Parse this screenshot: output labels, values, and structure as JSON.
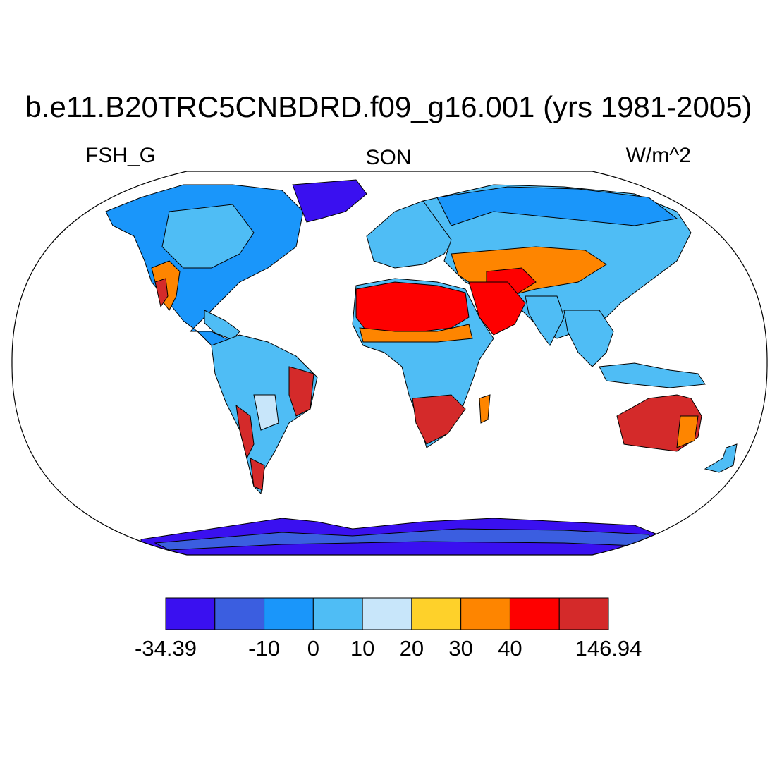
{
  "title": "b.e11.B20TRC5CNBDRD.f09_g16.001 (yrs 1981-2005)",
  "variable": "FSH_G",
  "season": "SON",
  "units": "W/m^2",
  "colorbar": {
    "colors": [
      "#3a10f0",
      "#3b5ee0",
      "#1a96fa",
      "#4fbdf5",
      "#c8e6fa",
      "#fed12a",
      "#fe8500",
      "#fe0000",
      "#d42a2a"
    ],
    "labels": [
      {
        "text": "-34.39",
        "edge": 0
      },
      {
        "text": "-10",
        "edge": 2
      },
      {
        "text": "0",
        "edge": 3
      },
      {
        "text": "10",
        "edge": 4
      },
      {
        "text": "20",
        "edge": 5
      },
      {
        "text": "30",
        "edge": 6
      },
      {
        "text": "40",
        "edge": 7
      },
      {
        "text": "146.94",
        "edge": 9
      }
    ]
  },
  "land_colors": {
    "ice": "#3a10f0",
    "cold": "#3b5ee0",
    "cool": "#1a96fa",
    "mild": "#4fbdf5",
    "pale": "#c8e6fa",
    "warm": "#fed12a",
    "hot": "#fe8500",
    "veryhot": "#fe0000",
    "desert": "#d42a2a",
    "ocean": "#ffffff"
  }
}
